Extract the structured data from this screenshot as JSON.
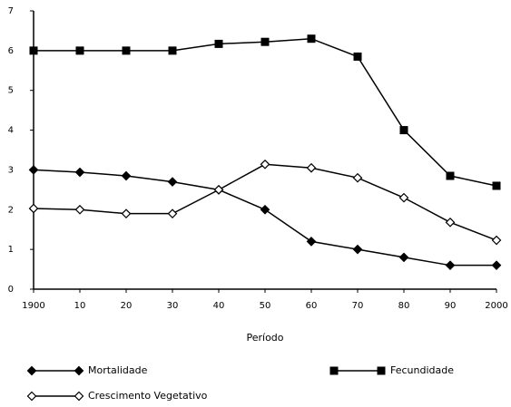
{
  "chart_data": {
    "type": "line",
    "x_label": "Período",
    "categories": [
      "1900",
      "10",
      "20",
      "30",
      "40",
      "50",
      "60",
      "70",
      "80",
      "90",
      "2000"
    ],
    "ylim": [
      0,
      7
    ],
    "yticks": [
      0,
      1,
      2,
      3,
      4,
      5,
      6,
      7
    ],
    "series": [
      {
        "name": "Mortalidade",
        "color": "#000000",
        "marker": "diamond-filled",
        "values": [
          3.0,
          2.94,
          2.85,
          2.7,
          2.5,
          2.0,
          1.2,
          1.0,
          0.8,
          0.6,
          0.6
        ]
      },
      {
        "name": "Fecundidade",
        "color": "#000000",
        "marker": "square-filled",
        "values": [
          6.0,
          6.0,
          6.0,
          6.0,
          6.17,
          6.22,
          6.3,
          5.85,
          4.0,
          2.85,
          2.6
        ]
      },
      {
        "name": "Crescimento Vegetativo",
        "color": "#000000",
        "marker": "diamond-open",
        "values": [
          2.03,
          2.0,
          1.9,
          1.9,
          2.5,
          3.14,
          3.05,
          2.8,
          2.3,
          1.68,
          1.23
        ]
      }
    ]
  }
}
